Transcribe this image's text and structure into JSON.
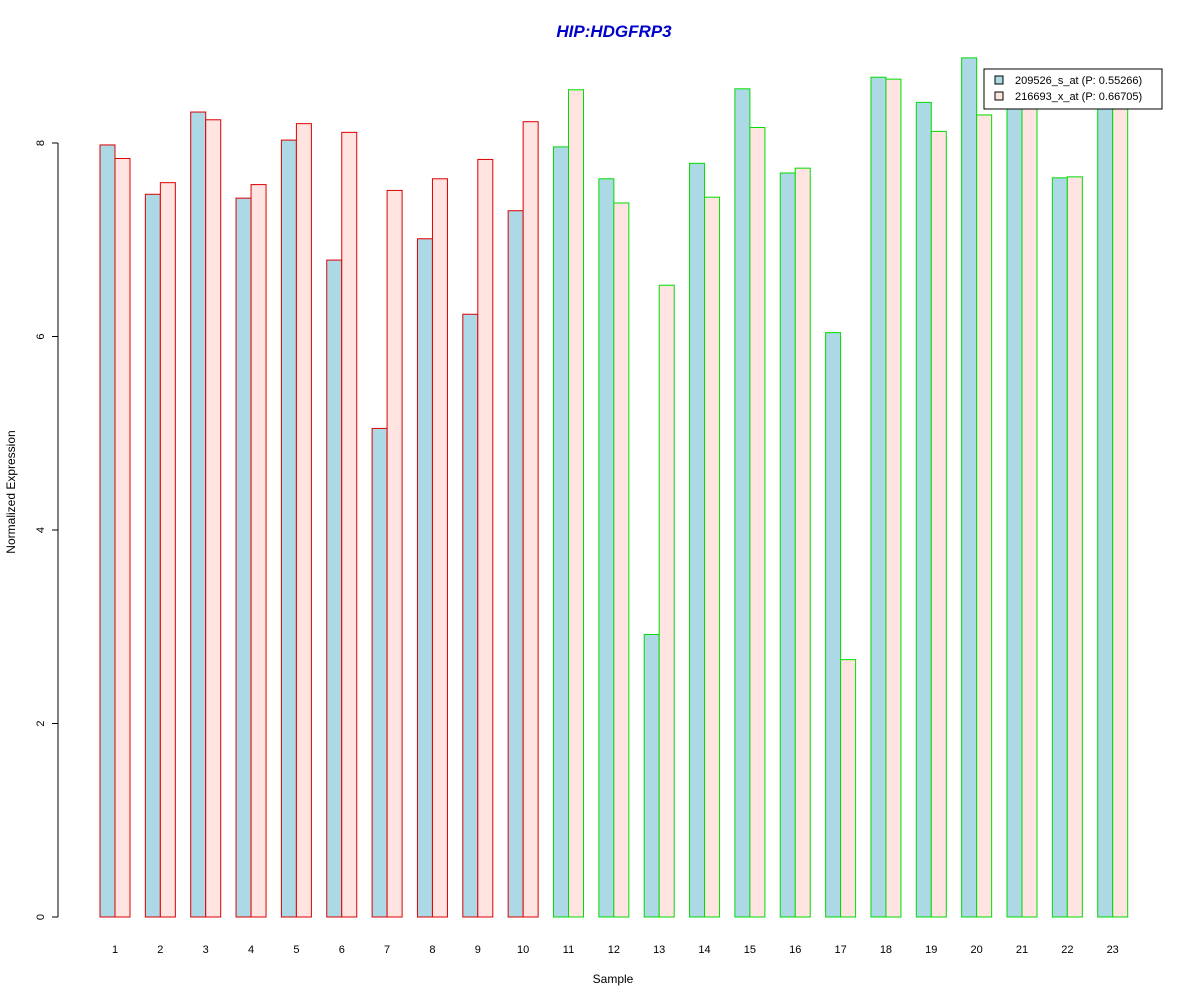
{
  "chart_data": {
    "type": "bar",
    "title": "HIP:HDGFRP3",
    "xlabel": "Sample",
    "ylabel": "Normalized Expression",
    "ylim": [
      0,
      9
    ],
    "yticks": [
      0,
      2,
      4,
      6,
      8
    ],
    "grid": false,
    "legend_position": "top-right",
    "categories": [
      "1",
      "2",
      "3",
      "4",
      "5",
      "6",
      "7",
      "8",
      "9",
      "10",
      "11",
      "12",
      "13",
      "14",
      "15",
      "16",
      "17",
      "18",
      "19",
      "20",
      "21",
      "22",
      "23"
    ],
    "series": [
      {
        "name": "209526_s_at (P: 0.55266)",
        "fill": "#add8e6",
        "values": [
          7.98,
          7.47,
          8.32,
          7.43,
          8.03,
          6.79,
          5.05,
          7.01,
          6.23,
          7.3,
          7.96,
          7.63,
          2.92,
          7.79,
          8.56,
          7.69,
          6.04,
          8.68,
          8.42,
          8.88,
          8.4,
          7.64,
          8.4
        ]
      },
      {
        "name": "216693_x_at (P: 0.66705)",
        "fill": "#ffe4e1",
        "values": [
          7.84,
          7.59,
          8.24,
          7.57,
          8.2,
          8.11,
          7.51,
          7.63,
          7.83,
          8.22,
          8.55,
          7.38,
          6.53,
          7.44,
          8.16,
          7.74,
          2.66,
          8.66,
          8.12,
          8.29,
          8.4,
          7.65,
          8.4
        ]
      }
    ],
    "group_colors": {
      "group_a": "#dd0000",
      "group_b": "#00dd00"
    },
    "groups": [
      "a",
      "a",
      "a",
      "a",
      "a",
      "a",
      "a",
      "a",
      "a",
      "a",
      "b",
      "b",
      "b",
      "b",
      "b",
      "b",
      "b",
      "b",
      "b",
      "b",
      "b",
      "b",
      "b"
    ],
    "title_color": "#0000cc"
  }
}
